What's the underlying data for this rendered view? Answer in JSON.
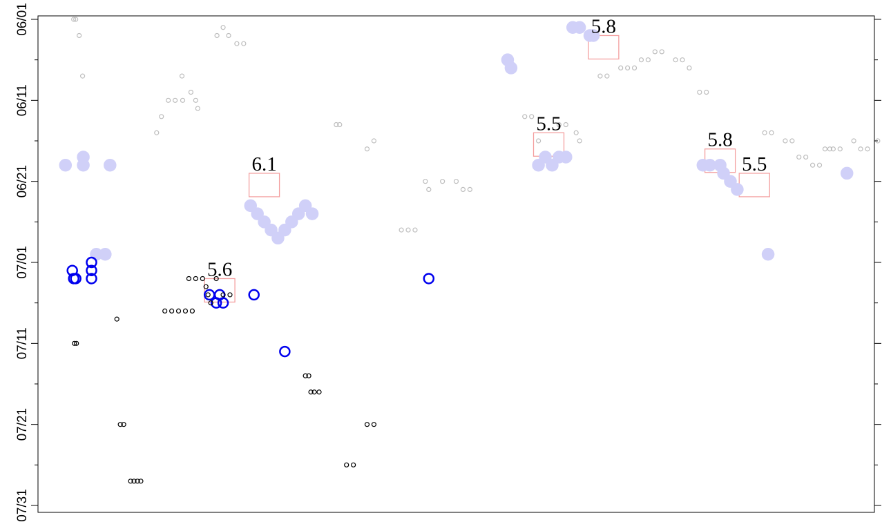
{
  "chart_data": {
    "type": "scatter",
    "title": "",
    "xlabel": "",
    "ylabel": "",
    "y_axis": {
      "kind": "date",
      "ylim": [
        "06/01",
        "07/31"
      ],
      "inverted": true,
      "tick_labels": [
        "06/01",
        "06/11",
        "06/21",
        "07/01",
        "07/11",
        "07/21",
        "07/31"
      ],
      "minor_ticks_every_days": 5
    },
    "x_axis": {
      "ticks": "none",
      "tick_labels": []
    },
    "grid": false,
    "colors": {
      "gray_points": "#bdbdbd",
      "lavender_points": "#d0d0f8",
      "blue_points": "#0000ee",
      "black_points": "#000000",
      "event_box": "#f4a0a0"
    },
    "series": [
      {
        "style": "small gray hollow circles",
        "points": [
          {
            "x": 4.2,
            "y": "06/01"
          },
          {
            "x": 4.5,
            "y": "06/01"
          },
          {
            "x": 5.0,
            "y": "06/03"
          },
          {
            "x": 5.5,
            "y": "06/08"
          },
          {
            "x": 16.3,
            "y": "06/15"
          },
          {
            "x": 17.0,
            "y": "06/13"
          },
          {
            "x": 18.0,
            "y": "06/11"
          },
          {
            "x": 19.0,
            "y": "06/11"
          },
          {
            "x": 20.1,
            "y": "06/11"
          },
          {
            "x": 21.3,
            "y": "06/10"
          },
          {
            "x": 22.0,
            "y": "06/11"
          },
          {
            "x": 22.3,
            "y": "06/12"
          },
          {
            "x": 20.0,
            "y": "06/08"
          },
          {
            "x": 25.1,
            "y": "06/03"
          },
          {
            "x": 26.0,
            "y": "06/02"
          },
          {
            "x": 26.8,
            "y": "06/03"
          },
          {
            "x": 28.0,
            "y": "06/04"
          },
          {
            "x": 29.0,
            "y": "06/04"
          },
          {
            "x": 42.5,
            "y": "06/14"
          },
          {
            "x": 43.0,
            "y": "06/14"
          },
          {
            "x": 47.0,
            "y": "06/17"
          },
          {
            "x": 48.0,
            "y": "06/16"
          },
          {
            "x": 52.0,
            "y": "06/27"
          },
          {
            "x": 53.0,
            "y": "06/27"
          },
          {
            "x": 54.0,
            "y": "06/27"
          },
          {
            "x": 55.5,
            "y": "06/21"
          },
          {
            "x": 56.0,
            "y": "06/22"
          },
          {
            "x": 58.0,
            "y": "06/21"
          },
          {
            "x": 60.0,
            "y": "06/21"
          },
          {
            "x": 61.0,
            "y": "06/22"
          },
          {
            "x": 62.0,
            "y": "06/22"
          },
          {
            "x": 70.0,
            "y": "06/13"
          },
          {
            "x": 71.0,
            "y": "06/13"
          },
          {
            "x": 72.0,
            "y": "06/16"
          },
          {
            "x": 75.0,
            "y": "06/14"
          },
          {
            "x": 76.0,
            "y": "06/14"
          },
          {
            "x": 77.5,
            "y": "06/15"
          },
          {
            "x": 78.0,
            "y": "06/16"
          },
          {
            "x": 81.0,
            "y": "06/08"
          },
          {
            "x": 82.0,
            "y": "06/08"
          },
          {
            "x": 84.0,
            "y": "06/07"
          },
          {
            "x": 85.0,
            "y": "06/07"
          },
          {
            "x": 86.0,
            "y": "06/07"
          },
          {
            "x": 87.0,
            "y": "06/06"
          },
          {
            "x": 88.0,
            "y": "06/06"
          },
          {
            "x": 89.0,
            "y": "06/05"
          },
          {
            "x": 90.0,
            "y": "06/05"
          },
          {
            "x": 92.0,
            "y": "06/06"
          },
          {
            "x": 93.0,
            "y": "06/06"
          },
          {
            "x": 94.0,
            "y": "06/07"
          },
          {
            "x": 95.5,
            "y": "06/10"
          },
          {
            "x": 96.5,
            "y": "06/10"
          },
          {
            "x": 105.0,
            "y": "06/15"
          },
          {
            "x": 106.0,
            "y": "06/15"
          },
          {
            "x": 108.0,
            "y": "06/16"
          },
          {
            "x": 109.0,
            "y": "06/16"
          },
          {
            "x": 110.0,
            "y": "06/18"
          },
          {
            "x": 111.0,
            "y": "06/18"
          },
          {
            "x": 112.0,
            "y": "06/19"
          },
          {
            "x": 113.0,
            "y": "06/19"
          },
          {
            "x": 113.8,
            "y": "06/17"
          },
          {
            "x": 114.5,
            "y": "06/17"
          },
          {
            "x": 115.0,
            "y": "06/17"
          },
          {
            "x": 116.0,
            "y": "06/17"
          },
          {
            "x": 118.0,
            "y": "06/16"
          },
          {
            "x": 119.0,
            "y": "06/17"
          },
          {
            "x": 120.0,
            "y": "06/17"
          },
          {
            "x": 121.5,
            "y": "06/16"
          },
          {
            "x": 122.5,
            "y": "06/17"
          },
          {
            "x": 123.0,
            "y": "06/16"
          },
          {
            "x": 124.0,
            "y": "06/18"
          },
          {
            "x": 125.0,
            "y": "06/18"
          }
        ]
      },
      {
        "style": "lavender circles and filled clusters",
        "points": [
          {
            "x": 3.0,
            "y": "06/19"
          },
          {
            "x": 5.6,
            "y": "06/18"
          },
          {
            "x": 5.6,
            "y": "06/19"
          },
          {
            "x": 9.5,
            "y": "06/19"
          },
          {
            "x": 7.5,
            "y": "06/30"
          },
          {
            "x": 8.8,
            "y": "06/30"
          },
          {
            "x": 30.0,
            "y": "06/24"
          },
          {
            "x": 31.0,
            "y": "06/25"
          },
          {
            "x": 32.0,
            "y": "06/26"
          },
          {
            "x": 33.0,
            "y": "06/27"
          },
          {
            "x": 34.0,
            "y": "06/28"
          },
          {
            "x": 35.0,
            "y": "06/27"
          },
          {
            "x": 36.0,
            "y": "06/26"
          },
          {
            "x": 37.0,
            "y": "06/25"
          },
          {
            "x": 38.0,
            "y": "06/24"
          },
          {
            "x": 39.0,
            "y": "06/25"
          },
          {
            "x": 67.5,
            "y": "06/06"
          },
          {
            "x": 68.0,
            "y": "06/07"
          },
          {
            "x": 72.0,
            "y": "06/19"
          },
          {
            "x": 73.0,
            "y": "06/18"
          },
          {
            "x": 74.0,
            "y": "06/19"
          },
          {
            "x": 75.0,
            "y": "06/18"
          },
          {
            "x": 76.0,
            "y": "06/18"
          },
          {
            "x": 77.0,
            "y": "06/02"
          },
          {
            "x": 78.0,
            "y": "06/02"
          },
          {
            "x": 79.5,
            "y": "06/03"
          },
          {
            "x": 80.0,
            "y": "06/03"
          },
          {
            "x": 96.0,
            "y": "06/19"
          },
          {
            "x": 97.0,
            "y": "06/19"
          },
          {
            "x": 98.5,
            "y": "06/19"
          },
          {
            "x": 99.0,
            "y": "06/20"
          },
          {
            "x": 100.0,
            "y": "06/21"
          },
          {
            "x": 101.0,
            "y": "06/22"
          },
          {
            "x": 105.5,
            "y": "06/30"
          },
          {
            "x": 117.0,
            "y": "06/20"
          }
        ]
      },
      {
        "style": "blue circles and filled cluster",
        "points": [
          {
            "x": 4.0,
            "y": "07/02"
          },
          {
            "x": 4.2,
            "y": "07/03"
          },
          {
            "x": 4.5,
            "y": "07/03"
          },
          {
            "x": 6.8,
            "y": "07/01"
          },
          {
            "x": 6.8,
            "y": "07/02"
          },
          {
            "x": 6.8,
            "y": "07/03"
          },
          {
            "x": 24.0,
            "y": "07/05"
          },
          {
            "x": 25.0,
            "y": "07/06"
          },
          {
            "x": 25.5,
            "y": "07/05"
          },
          {
            "x": 26.0,
            "y": "07/06"
          },
          {
            "x": 30.5,
            "y": "07/05"
          },
          {
            "x": 35.0,
            "y": "07/12"
          },
          {
            "x": 56.0,
            "y": "07/03"
          }
        ]
      },
      {
        "style": "small black hollow circles",
        "points": [
          {
            "x": 4.3,
            "y": "07/11"
          },
          {
            "x": 4.6,
            "y": "07/11"
          },
          {
            "x": 10.5,
            "y": "07/08"
          },
          {
            "x": 11.0,
            "y": "07/21"
          },
          {
            "x": 11.5,
            "y": "07/21"
          },
          {
            "x": 12.5,
            "y": "07/28"
          },
          {
            "x": 13.0,
            "y": "07/28"
          },
          {
            "x": 13.5,
            "y": "07/28"
          },
          {
            "x": 14.0,
            "y": "07/28"
          },
          {
            "x": 17.5,
            "y": "07/07"
          },
          {
            "x": 18.5,
            "y": "07/07"
          },
          {
            "x": 19.5,
            "y": "07/07"
          },
          {
            "x": 20.5,
            "y": "07/07"
          },
          {
            "x": 21.5,
            "y": "07/07"
          },
          {
            "x": 21.0,
            "y": "07/03"
          },
          {
            "x": 22.0,
            "y": "07/03"
          },
          {
            "x": 23.0,
            "y": "07/03"
          },
          {
            "x": 23.5,
            "y": "07/04"
          },
          {
            "x": 23.8,
            "y": "07/05"
          },
          {
            "x": 24.2,
            "y": "07/06"
          },
          {
            "x": 25.0,
            "y": "07/03"
          },
          {
            "x": 26.0,
            "y": "07/05"
          },
          {
            "x": 27.0,
            "y": "07/05"
          },
          {
            "x": 38.0,
            "y": "07/15"
          },
          {
            "x": 38.5,
            "y": "07/15"
          },
          {
            "x": 38.8,
            "y": "07/17"
          },
          {
            "x": 39.3,
            "y": "07/17"
          },
          {
            "x": 40.0,
            "y": "07/17"
          },
          {
            "x": 44.0,
            "y": "07/26"
          },
          {
            "x": 45.0,
            "y": "07/26"
          },
          {
            "x": 47.0,
            "y": "07/21"
          },
          {
            "x": 48.0,
            "y": "07/21"
          }
        ]
      }
    ],
    "annotations": [
      {
        "label": "6.1",
        "x": 32.0,
        "y": "06/20"
      },
      {
        "label": "5.6",
        "x": 25.5,
        "y": "07/03"
      },
      {
        "label": "5.5",
        "x": 73.5,
        "y": "06/15"
      },
      {
        "label": "5.8",
        "x": 81.5,
        "y": "06/03"
      },
      {
        "label": "5.8",
        "x": 98.5,
        "y": "06/17"
      },
      {
        "label": "5.5",
        "x": 103.5,
        "y": "06/20"
      }
    ]
  }
}
